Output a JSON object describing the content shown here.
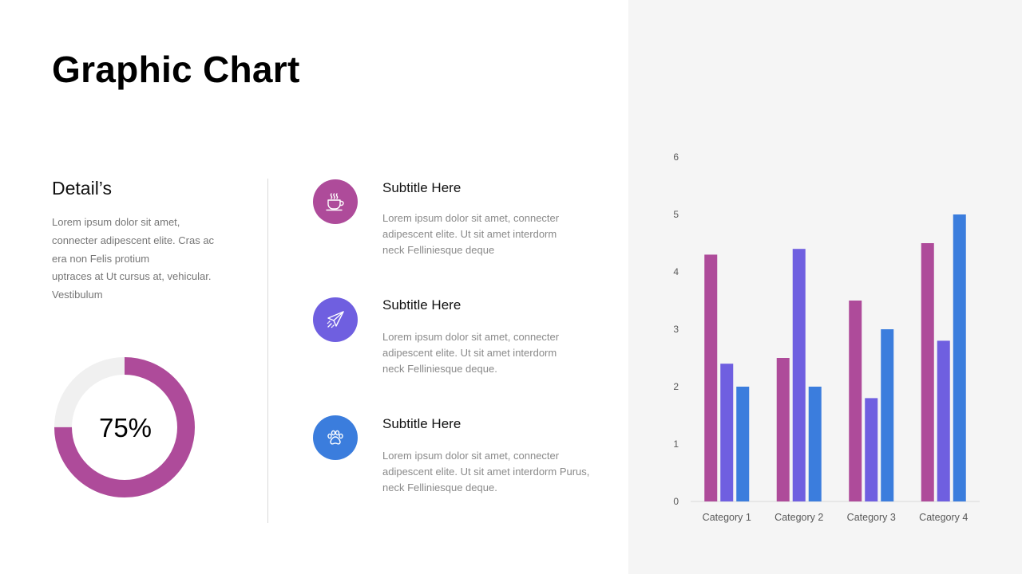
{
  "title": "Graphic Chart",
  "details": {
    "heading": "Detail’s",
    "lines": [
      "Lorem ipsum dolor sit amet,",
      "connecter adipescent elite. Cras ac",
      "era non Felis protium",
      "uptraces at Ut cursus at, vehicular.",
      "Vestibulum"
    ]
  },
  "donut": {
    "percent": 0.75,
    "label": "75%",
    "fill_color": "#ae4b9a",
    "track_color": "#f0f0f0"
  },
  "features": [
    {
      "icon": "coffee-cup-icon",
      "color": "#ae4b9a",
      "title": "Subtitle Here",
      "lines": [
        "Lorem ipsum dolor sit amet, connecter",
        "adipescent elite. Ut sit amet interdorm",
        "neck Felliniesque deque"
      ]
    },
    {
      "icon": "paper-plane-icon",
      "color": "#6f5fe0",
      "title": "Subtitle Here",
      "lines": [
        "Lorem ipsum dolor sit amet, connecter",
        "adipescent elite. Ut sit amet interdorm",
        "neck Felliniesque deque."
      ]
    },
    {
      "icon": "paw-print-icon",
      "color": "#3b7ddd",
      "title": "Subtitle Here",
      "lines": [
        "Lorem ipsum dolor sit amet, connecter",
        "adipescent elite. Ut sit amet interdorm Purus,",
        "neck Felliniesque deque."
      ]
    }
  ],
  "chart_data": {
    "type": "bar",
    "title": "",
    "xlabel": "",
    "ylabel": "",
    "categories": [
      "Category 1",
      "Category 2",
      "Category 3",
      "Category 4"
    ],
    "series": [
      {
        "values": [
          4.3,
          2.5,
          3.5,
          4.5
        ],
        "color": "#ae4b9a"
      },
      {
        "values": [
          2.4,
          4.4,
          1.8,
          2.8
        ],
        "color": "#6f5fe0"
      },
      {
        "values": [
          2,
          2,
          3,
          5
        ],
        "color": "#3b7ddd"
      }
    ],
    "ylim": [
      0,
      6
    ],
    "yticks": [
      0,
      1,
      2,
      3,
      4,
      5,
      6
    ],
    "grid": false,
    "legend": "none"
  }
}
